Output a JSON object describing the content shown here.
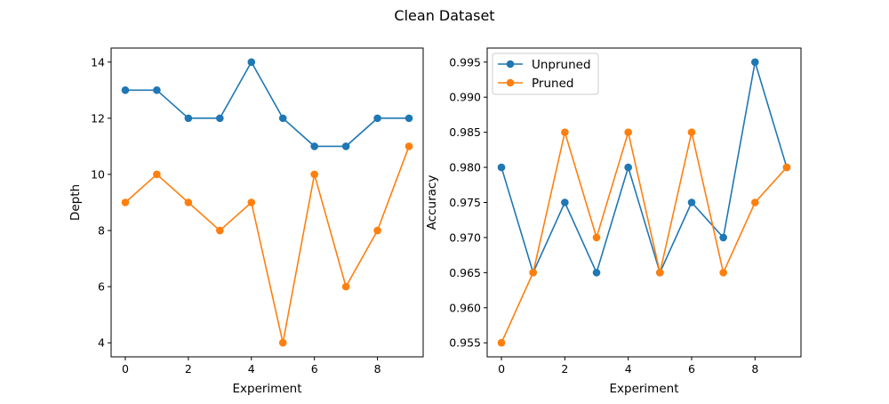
{
  "figure": {
    "suptitle": "Clean Dataset"
  },
  "colors": {
    "unpruned": "#1f77b4",
    "pruned": "#ff7f0e",
    "axes": "#000000",
    "background": "#ffffff"
  },
  "chart_data": [
    {
      "type": "line",
      "title": "",
      "xlabel": "Experiment",
      "ylabel": "Depth",
      "x": [
        0,
        1,
        2,
        3,
        4,
        5,
        6,
        7,
        8,
        9
      ],
      "xlim": [
        -0.45,
        9.45
      ],
      "ylim": [
        3.5,
        14.5
      ],
      "xticks": [
        0,
        2,
        4,
        6,
        8
      ],
      "yticks": [
        4,
        6,
        8,
        10,
        12,
        14
      ],
      "xtick_labels": [
        "0",
        "2",
        "4",
        "6",
        "8"
      ],
      "ytick_labels": [
        "4",
        "6",
        "8",
        "10",
        "12",
        "14"
      ],
      "grid": false,
      "legend": null,
      "series": [
        {
          "color_key": "unpruned",
          "values": [
            13,
            13,
            12,
            12,
            14,
            12,
            11,
            11,
            12,
            12
          ],
          "marker": "circle"
        },
        {
          "color_key": "pruned",
          "values": [
            9,
            10,
            9,
            8,
            9,
            4,
            10,
            6,
            8,
            11
          ],
          "marker": "circle"
        }
      ]
    },
    {
      "type": "line",
      "title": "",
      "xlabel": "Experiment",
      "ylabel": "Accuracy",
      "x": [
        0,
        1,
        2,
        3,
        4,
        5,
        6,
        7,
        8,
        9
      ],
      "xlim": [
        -0.45,
        9.45
      ],
      "ylim": [
        0.953,
        0.997
      ],
      "xticks": [
        0,
        2,
        4,
        6,
        8
      ],
      "yticks": [
        0.955,
        0.96,
        0.965,
        0.97,
        0.975,
        0.98,
        0.985,
        0.99,
        0.995
      ],
      "xtick_labels": [
        "0",
        "2",
        "4",
        "6",
        "8"
      ],
      "ytick_labels": [
        "0.955",
        "0.960",
        "0.965",
        "0.970",
        "0.975",
        "0.980",
        "0.985",
        "0.990",
        "0.995"
      ],
      "grid": false,
      "legend": "upper-left",
      "series": [
        {
          "name": "Unpruned",
          "color_key": "unpruned",
          "values": [
            0.98,
            0.965,
            0.975,
            0.965,
            0.98,
            0.965,
            0.975,
            0.97,
            0.995,
            0.98
          ],
          "marker": "circle"
        },
        {
          "name": "Pruned",
          "color_key": "pruned",
          "values": [
            0.955,
            0.965,
            0.985,
            0.97,
            0.985,
            0.965,
            0.985,
            0.965,
            0.975,
            0.98
          ],
          "marker": "circle"
        }
      ]
    }
  ]
}
